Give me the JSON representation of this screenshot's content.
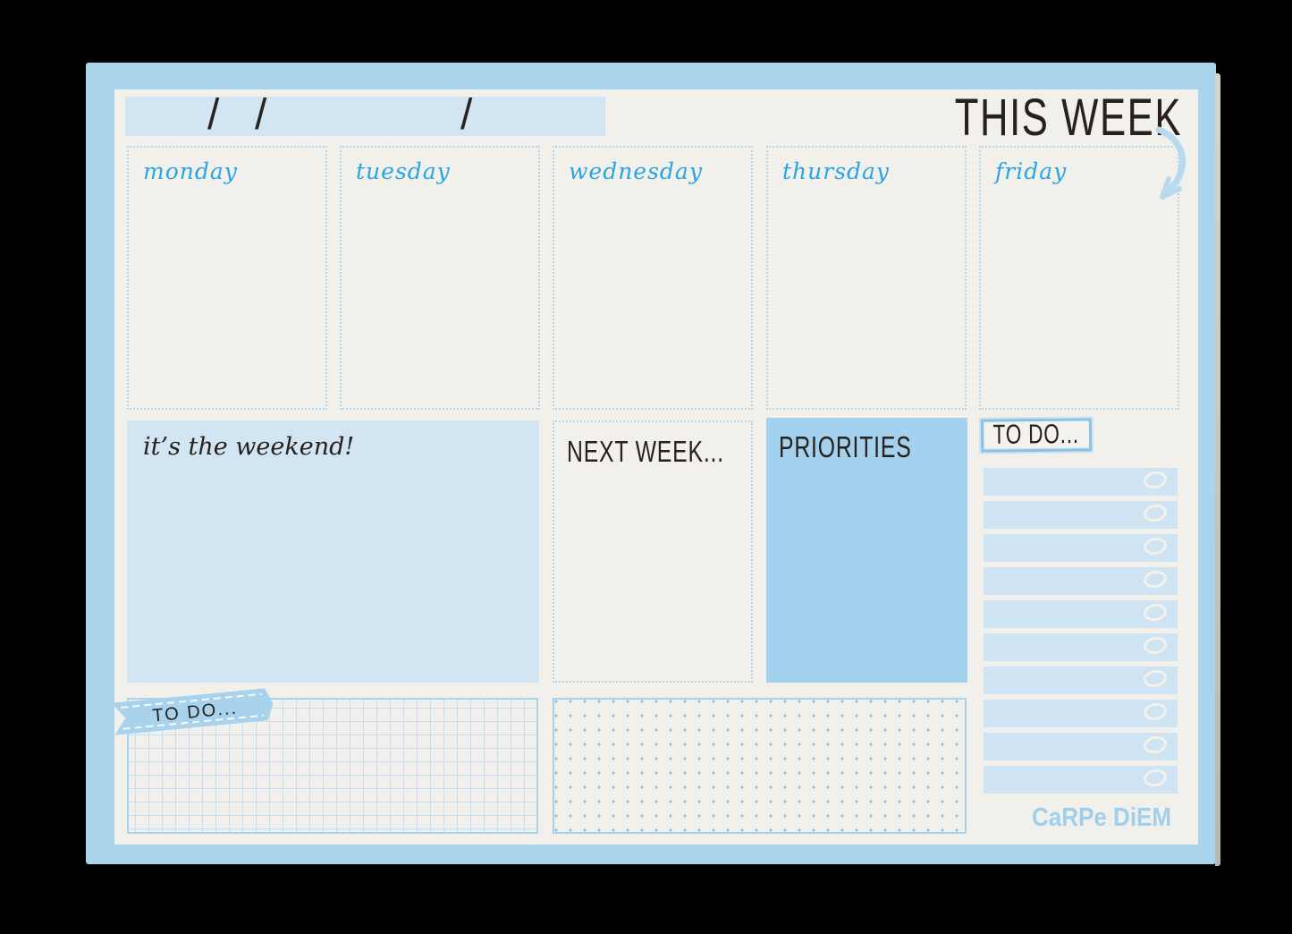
{
  "header": {
    "title": "THIS WEEK",
    "date_slashes": [
      "/",
      "/",
      "/"
    ]
  },
  "days": [
    {
      "label": "monday"
    },
    {
      "label": "tuesday"
    },
    {
      "label": "wednesday"
    },
    {
      "label": "thursday"
    },
    {
      "label": "friday"
    }
  ],
  "sections": {
    "weekend": {
      "label": "it’s the weekend!"
    },
    "next_week": {
      "label": "NEXT WEEK..."
    },
    "priorities": {
      "label": "PRIORITIES"
    },
    "todo_box": {
      "label": "TO DO...",
      "rows": 10
    },
    "todo_banner": {
      "label": "TO DO..."
    }
  },
  "brand": {
    "logo": "CaRPe DiEM"
  },
  "colors": {
    "pad_border": "#a9d4ec",
    "paper": "#f2f0ea",
    "fill_light": "#d2e5f2",
    "fill_medium": "#a3d1ee",
    "script_blue": "#29a4e4",
    "ink": "#26211c",
    "logo_blue": "#9ed0ee"
  }
}
